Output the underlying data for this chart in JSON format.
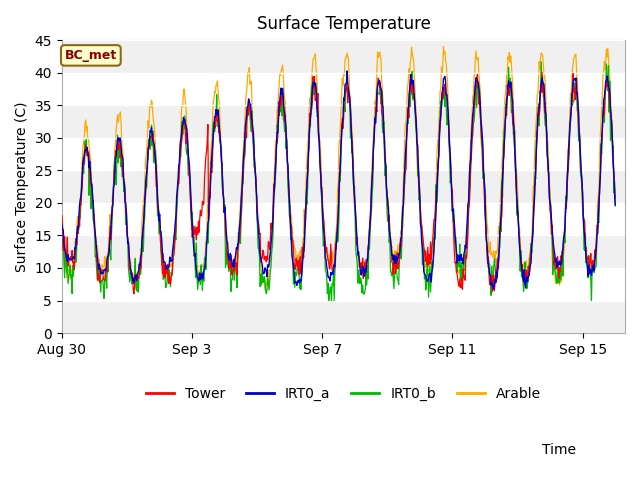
{
  "title": "Surface Temperature",
  "xlabel": "Time",
  "ylabel": "Surface Temperature (C)",
  "ylim": [
    0,
    45
  ],
  "xlim_start": 0,
  "xlim_end": 17.3,
  "annotation": "BC_met",
  "fig_bg_color": "#ffffff",
  "plot_bg_color": "#f0f0f0",
  "band_colors": [
    "#f0f0f0",
    "#ffffff"
  ],
  "series_colors": {
    "Tower": "#ff0000",
    "IRT0_a": "#0000cc",
    "IRT0_b": "#00bb00",
    "Arable": "#ffaa00"
  },
  "x_ticks_labels": [
    "Aug 30",
    "Sep 3",
    "Sep 7",
    "Sep 11",
    "Sep 15"
  ],
  "x_ticks_positions": [
    0,
    4,
    8,
    12,
    16
  ],
  "y_ticks": [
    0,
    5,
    10,
    15,
    20,
    25,
    30,
    35,
    40,
    45
  ],
  "legend_items": [
    "Tower",
    "IRT0_a",
    "IRT0_b",
    "Arable"
  ],
  "num_days": 17,
  "samples_per_day": 48
}
